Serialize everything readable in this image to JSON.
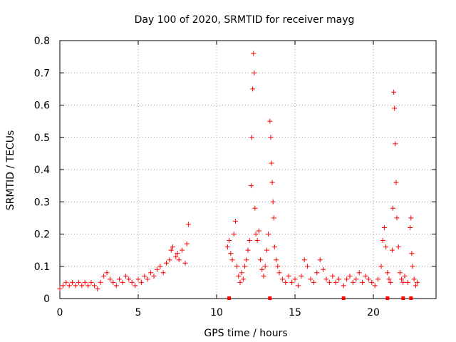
{
  "chart_data": {
    "type": "scatter",
    "title": "Day 100 of 2020, SRMTID for receiver mayg",
    "xlabel": "GPS time / hours",
    "ylabel": "SRMTID / TECUs",
    "xlim": [
      0,
      24
    ],
    "ylim": [
      0,
      0.8
    ],
    "xticks": [
      0,
      5,
      10,
      15,
      20
    ],
    "yticks": [
      0,
      0.1,
      0.2,
      0.3,
      0.4,
      0.5,
      0.6,
      0.7,
      0.8
    ],
    "xtick_labels": [
      "0",
      "5",
      "10",
      "15",
      "20"
    ],
    "ytick_labels": [
      "0",
      "0.1",
      "0.2",
      "0.3",
      "0.4",
      "0.5",
      "0.6",
      "0.7",
      "0.8"
    ],
    "grid": true,
    "marker": "+",
    "series": [
      {
        "name": "SRMTID",
        "color": "#ff0000",
        "x": [
          0.0,
          0.2,
          0.4,
          0.6,
          0.8,
          1.0,
          1.2,
          1.4,
          1.6,
          1.8,
          2.0,
          2.2,
          2.4,
          2.6,
          2.8,
          3.0,
          3.2,
          3.4,
          3.6,
          3.8,
          4.0,
          4.2,
          4.4,
          4.6,
          4.8,
          5.0,
          5.2,
          5.4,
          5.6,
          5.8,
          6.0,
          6.2,
          6.4,
          6.6,
          6.8,
          7.0,
          7.1,
          7.2,
          7.4,
          7.5,
          7.6,
          7.8,
          8.0,
          8.1,
          8.2,
          10.7,
          10.8,
          10.9,
          11.0,
          11.1,
          11.2,
          11.3,
          11.4,
          11.5,
          11.6,
          11.7,
          11.8,
          11.9,
          12.0,
          12.1,
          12.2,
          12.25,
          12.3,
          12.35,
          12.4,
          12.45,
          12.5,
          12.6,
          12.7,
          12.8,
          12.9,
          13.0,
          13.1,
          13.2,
          13.3,
          13.4,
          13.45,
          13.5,
          13.55,
          13.6,
          13.65,
          13.7,
          13.8,
          13.9,
          14.0,
          14.2,
          14.4,
          14.6,
          14.8,
          15.0,
          15.2,
          15.4,
          15.6,
          15.8,
          16.0,
          16.2,
          16.4,
          16.6,
          16.8,
          17.0,
          17.2,
          17.4,
          17.6,
          17.8,
          18.1,
          18.3,
          18.5,
          18.7,
          18.9,
          19.1,
          19.3,
          19.5,
          19.7,
          19.9,
          20.1,
          20.3,
          20.5,
          20.6,
          20.7,
          20.8,
          20.9,
          21.0,
          21.1,
          21.2,
          21.25,
          21.3,
          21.35,
          21.4,
          21.45,
          21.5,
          21.6,
          21.7,
          21.8,
          21.9,
          22.0,
          22.2,
          22.35,
          22.4,
          22.45,
          22.5,
          22.6,
          22.7,
          22.8
        ],
        "y": [
          0.03,
          0.04,
          0.05,
          0.04,
          0.05,
          0.04,
          0.05,
          0.04,
          0.05,
          0.04,
          0.05,
          0.04,
          0.03,
          0.05,
          0.07,
          0.08,
          0.06,
          0.05,
          0.04,
          0.06,
          0.05,
          0.07,
          0.06,
          0.05,
          0.04,
          0.06,
          0.05,
          0.07,
          0.06,
          0.08,
          0.07,
          0.09,
          0.1,
          0.08,
          0.11,
          0.12,
          0.15,
          0.16,
          0.13,
          0.14,
          0.12,
          0.15,
          0.11,
          0.17,
          0.23,
          0.16,
          0.18,
          0.14,
          0.12,
          0.2,
          0.24,
          0.1,
          0.07,
          0.05,
          0.08,
          0.06,
          0.1,
          0.12,
          0.15,
          0.18,
          0.35,
          0.5,
          0.65,
          0.76,
          0.7,
          0.28,
          0.2,
          0.18,
          0.21,
          0.12,
          0.09,
          0.07,
          0.1,
          0.15,
          0.2,
          0.55,
          0.5,
          0.42,
          0.36,
          0.3,
          0.25,
          0.16,
          0.12,
          0.1,
          0.08,
          0.06,
          0.05,
          0.07,
          0.05,
          0.06,
          0.04,
          0.07,
          0.12,
          0.1,
          0.06,
          0.05,
          0.08,
          0.12,
          0.09,
          0.06,
          0.05,
          0.07,
          0.05,
          0.06,
          0.04,
          0.06,
          0.07,
          0.05,
          0.06,
          0.08,
          0.05,
          0.07,
          0.06,
          0.05,
          0.04,
          0.06,
          0.1,
          0.18,
          0.22,
          0.16,
          0.08,
          0.06,
          0.05,
          0.15,
          0.28,
          0.64,
          0.59,
          0.48,
          0.36,
          0.25,
          0.16,
          0.08,
          0.06,
          0.05,
          0.07,
          0.05,
          0.22,
          0.25,
          0.14,
          0.1,
          0.06,
          0.04,
          0.05
        ]
      }
    ],
    "gap_markers_x": [
      10.8,
      13.4,
      18.1,
      20.9,
      21.9,
      22.4
    ]
  }
}
